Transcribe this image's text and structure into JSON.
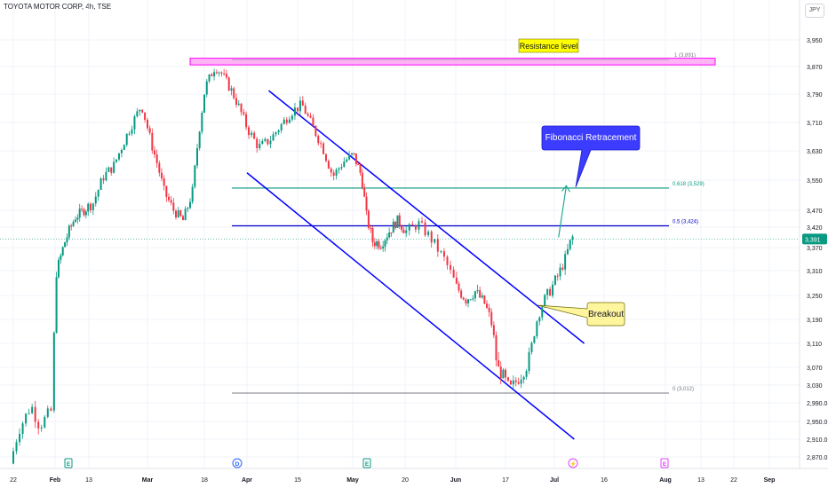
{
  "header": {
    "symbol": "TOYOTA MOTOR CORP, 4h, TSE",
    "currency": "JPY"
  },
  "chart_data": {
    "type": "candlestick",
    "symbol": "TOYOTA MOTOR CORP",
    "interval": "4h",
    "exchange": "TSE",
    "y_ticks": [
      2870,
      2910,
      2950,
      2990,
      3030,
      3070,
      3110,
      3190,
      3250,
      3310,
      3370,
      3420,
      3470,
      3550,
      3630,
      3710,
      3790,
      3870,
      3950
    ],
    "y_tick_labels": [
      "2,870.0",
      "2,910.0",
      "2,950.0",
      "2,990.0",
      "3,030",
      "3,070",
      "3,110",
      "3,190",
      "3,250",
      "3,310",
      "3,370",
      "3,420",
      "3,470",
      "3,550",
      "3,630",
      "3,710",
      "3,790",
      "3,870",
      "3,950"
    ],
    "last_price": 3391,
    "last_price_label": "3,391",
    "x_ticks": [
      {
        "label": "22",
        "strong": false
      },
      {
        "label": "Feb",
        "strong": true
      },
      {
        "label": "13",
        "strong": false
      },
      {
        "label": "Mar",
        "strong": true
      },
      {
        "label": "18",
        "strong": false
      },
      {
        "label": "Apr",
        "strong": true
      },
      {
        "label": "15",
        "strong": false
      },
      {
        "label": "May",
        "strong": true
      },
      {
        "label": "20",
        "strong": false
      },
      {
        "label": "Jun",
        "strong": true
      },
      {
        "label": "17",
        "strong": false
      },
      {
        "label": "Jul",
        "strong": true
      },
      {
        "label": "16",
        "strong": false
      },
      {
        "label": "Aug",
        "strong": true
      },
      {
        "label": "13",
        "strong": false
      },
      {
        "label": "22",
        "strong": false
      },
      {
        "label": "Sep",
        "strong": true
      }
    ],
    "event_markers": [
      {
        "glyph": "E",
        "kind": "earnings"
      },
      {
        "glyph": "D",
        "kind": "dividend"
      },
      {
        "glyph": "E",
        "kind": "earnings"
      },
      {
        "glyph": "⚡",
        "kind": "split"
      },
      {
        "glyph": "E",
        "kind": "earnings"
      }
    ],
    "fibonacci_levels": [
      {
        "level": 1,
        "price": 3891,
        "label": "1 (3,891)"
      },
      {
        "level": 0.618,
        "price": 3529,
        "label": "0.618 (3,529)"
      },
      {
        "level": 0.5,
        "price": 3424,
        "label": "0.5 (3,424)"
      },
      {
        "level": 0,
        "price": 3012,
        "label": "0 (3,012)"
      }
    ],
    "resistance_zone": {
      "low": 3875,
      "high": 3895
    },
    "channel": {
      "upper": [
        {
          "date": "2024-04-07",
          "price": 3800
        },
        {
          "date": "2024-07-10",
          "price": 3110
        }
      ],
      "lower": [
        {
          "date": "2024-04-01",
          "price": 3570
        },
        {
          "date": "2024-07-07",
          "price": 2910
        }
      ]
    },
    "projection_arrow": {
      "from": {
        "date": "2024-07-02",
        "price": 3395
      },
      "to": {
        "date": "2024-07-03",
        "price": 3535
      }
    },
    "annotations": [
      {
        "text": "Resistance level",
        "kind": "label"
      },
      {
        "text": "Fibonacci Retracement",
        "kind": "callout"
      },
      {
        "text": "Breakout",
        "kind": "callout"
      }
    ],
    "colors": {
      "up": "#089981",
      "down": "#f23645",
      "channel": "#0000ff",
      "fib_618": "#089981",
      "fib_05": "#0000cc",
      "fib_0": "#787b86",
      "resistance": "#ff00ff",
      "callout_fib": "#3c3cff",
      "callout_breakout": "#fff59d",
      "label_resistance": "#ffff00"
    }
  }
}
